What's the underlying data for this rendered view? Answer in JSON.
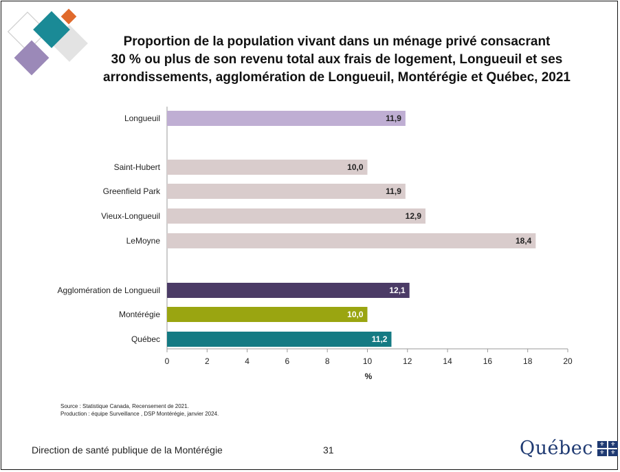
{
  "title_lines": [
    "Proportion de la population vivant dans un ménage privé consacrant",
    "30 % ou plus de son revenu total aux frais de logement, Longueuil et ses",
    "arrondissements, agglomération de Longueuil, Montérégie et Québec, 2021"
  ],
  "chart_data": {
    "type": "bar",
    "orientation": "horizontal",
    "categories": [
      "Longueuil",
      "Saint-Hubert",
      "Greenfield Park",
      "Vieux-Longueuil",
      "LeMoyne",
      "Agglomération de Longueuil",
      "Montérégie",
      "Québec"
    ],
    "values": [
      11.9,
      10.0,
      11.9,
      12.9,
      18.4,
      12.1,
      10.0,
      11.2
    ],
    "value_labels": [
      "11,9",
      "10,0",
      "11,9",
      "12,9",
      "18,4",
      "12,1",
      "10,0",
      "11,2"
    ],
    "bar_colors": [
      "#bfaed3",
      "#d9cccc",
      "#d9cccc",
      "#d9cccc",
      "#d9cccc",
      "#4b3b66",
      "#9aa511",
      "#147a83"
    ],
    "label_colors": [
      "#222222",
      "#222222",
      "#222222",
      "#222222",
      "#222222",
      "#ffffff",
      "#ffffff",
      "#ffffff"
    ],
    "groups": [
      [
        0
      ],
      [
        1,
        2,
        3,
        4
      ],
      [
        5,
        6,
        7
      ]
    ],
    "xlabel": "%",
    "xlim": [
      0,
      20
    ],
    "xticks": [
      0,
      2,
      4,
      6,
      8,
      10,
      12,
      14,
      16,
      18,
      20
    ],
    "grid": false
  },
  "notes": {
    "source": "Source : Statistique Canada, Recensement de 2021.",
    "production": "Production : équipe Surveillance , DSP Montérégie, janvier 2024."
  },
  "footer": {
    "organization": "Direction de santé publique de la Montérégie",
    "page_number": "31",
    "logo_text": "Québec"
  },
  "colors": {
    "diamond_teal": "#1a8a96",
    "diamond_orange": "#e06a2c",
    "diamond_purple": "#9b89b8",
    "diamond_grey": "#e3e3e3",
    "logo_blue": "#1f3a72"
  }
}
